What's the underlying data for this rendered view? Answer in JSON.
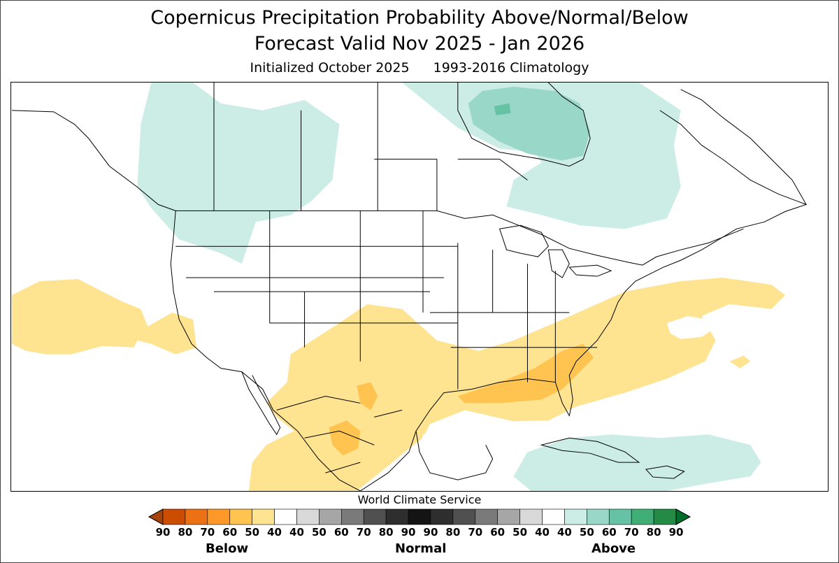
{
  "title": {
    "line1": "Copernicus Precipitation Probability Above/Normal/Below",
    "line2": "Forecast Valid Nov 2025 - Jan 2026"
  },
  "subtitle": {
    "initialized": "Initialized October 2025",
    "climatology": "1993-2016 Climatology"
  },
  "credit": "World Climate Service",
  "legend": {
    "categories": [
      "Below",
      "Normal",
      "Above"
    ],
    "ticks": [
      "90",
      "80",
      "70",
      "60",
      "50",
      "40",
      "40",
      "50",
      "60",
      "70",
      "80",
      "90",
      "90",
      "80",
      "70",
      "60",
      "50",
      "40",
      "40",
      "50",
      "60",
      "70",
      "80",
      "90"
    ],
    "bins": [
      {
        "color": "#a6430a",
        "role": "below-extend"
      },
      {
        "color": "#cc4c02",
        "role": "below-80-90"
      },
      {
        "color": "#ec7014",
        "role": "below-70-80"
      },
      {
        "color": "#fe9929",
        "role": "below-60-70"
      },
      {
        "color": "#fec44f",
        "role": "below-50-60"
      },
      {
        "color": "#fee391",
        "role": "below-40-50"
      },
      {
        "color": "#ffffff",
        "role": "neutral"
      },
      {
        "color": "#d9d9d9",
        "role": "normal-40-50"
      },
      {
        "color": "#a6a6a6",
        "role": "normal-50-60"
      },
      {
        "color": "#7a7a7a",
        "role": "normal-60-70"
      },
      {
        "color": "#505050",
        "role": "normal-70-80"
      },
      {
        "color": "#2e2e2e",
        "role": "normal-80-90"
      },
      {
        "color": "#141414",
        "role": "normal-90"
      },
      {
        "color": "#2e2e2e",
        "role": "normal-90-80"
      },
      {
        "color": "#505050",
        "role": "normal-80-70"
      },
      {
        "color": "#7a7a7a",
        "role": "normal-70-60"
      },
      {
        "color": "#a6a6a6",
        "role": "normal-60-50"
      },
      {
        "color": "#d9d9d9",
        "role": "normal-50-40"
      },
      {
        "color": "#ffffff",
        "role": "neutral"
      },
      {
        "color": "#ccece6",
        "role": "above-40-50"
      },
      {
        "color": "#99d8c9",
        "role": "above-50-60"
      },
      {
        "color": "#66c2a4",
        "role": "above-60-70"
      },
      {
        "color": "#41ae76",
        "role": "above-70-80"
      },
      {
        "color": "#238b45",
        "role": "above-80-90"
      },
      {
        "color": "#006d2c",
        "role": "above-extend"
      }
    ]
  },
  "colors": {
    "above_40_50": "#ccece6",
    "above_50_60": "#99d8c9",
    "above_60_70": "#66c2a4",
    "below_40_50": "#fee391",
    "below_50_60": "#fec44f",
    "boundary": "#000000"
  }
}
